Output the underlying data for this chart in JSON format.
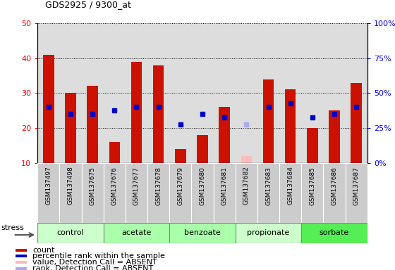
{
  "title": "GDS2925 / 9300_at",
  "samples": [
    "GSM137497",
    "GSM137498",
    "GSM137675",
    "GSM137676",
    "GSM137677",
    "GSM137678",
    "GSM137679",
    "GSM137680",
    "GSM137681",
    "GSM137682",
    "GSM137683",
    "GSM137684",
    "GSM137685",
    "GSM137686",
    "GSM137687"
  ],
  "count_values": [
    41,
    30,
    32,
    16,
    39,
    38,
    14,
    18,
    26,
    0,
    34,
    31,
    20,
    25,
    33
  ],
  "count_absent": [
    0,
    0,
    0,
    0,
    0,
    0,
    0,
    0,
    0,
    12,
    0,
    0,
    0,
    0,
    0
  ],
  "percentile_values": [
    26,
    24,
    24,
    25,
    26,
    26,
    21,
    24,
    23,
    0,
    26,
    27,
    23,
    24,
    26
  ],
  "percentile_absent": [
    0,
    0,
    0,
    0,
    0,
    0,
    0,
    0,
    0,
    21,
    0,
    0,
    0,
    0,
    0
  ],
  "groups": [
    {
      "name": "control",
      "indices": [
        0,
        1,
        2
      ],
      "color": "#ccffcc"
    },
    {
      "name": "acetate",
      "indices": [
        3,
        4,
        5
      ],
      "color": "#aaffaa"
    },
    {
      "name": "benzoate",
      "indices": [
        6,
        7,
        8
      ],
      "color": "#aaffaa"
    },
    {
      "name": "propionate",
      "indices": [
        9,
        10,
        11
      ],
      "color": "#ccffcc"
    },
    {
      "name": "sorbate",
      "indices": [
        12,
        13,
        14
      ],
      "color": "#55ee55"
    }
  ],
  "ylim_left": [
    10,
    50
  ],
  "ylim_right": [
    0,
    100
  ],
  "yticks_left": [
    10,
    20,
    30,
    40,
    50
  ],
  "yticks_right": [
    0,
    25,
    50,
    75,
    100
  ],
  "ytick_labels_right": [
    "0%",
    "25%",
    "50%",
    "75%",
    "100%"
  ],
  "count_color": "#cc1100",
  "count_absent_color": "#ffbbbb",
  "percentile_color": "#0000cc",
  "percentile_absent_color": "#aaaaee",
  "plot_bg": "#dddddd",
  "legend_items": [
    {
      "color": "#cc1100",
      "label": "count"
    },
    {
      "color": "#0000cc",
      "label": "percentile rank within the sample"
    },
    {
      "color": "#ffbbbb",
      "label": "value, Detection Call = ABSENT"
    },
    {
      "color": "#aaaaee",
      "label": "rank, Detection Call = ABSENT"
    }
  ]
}
